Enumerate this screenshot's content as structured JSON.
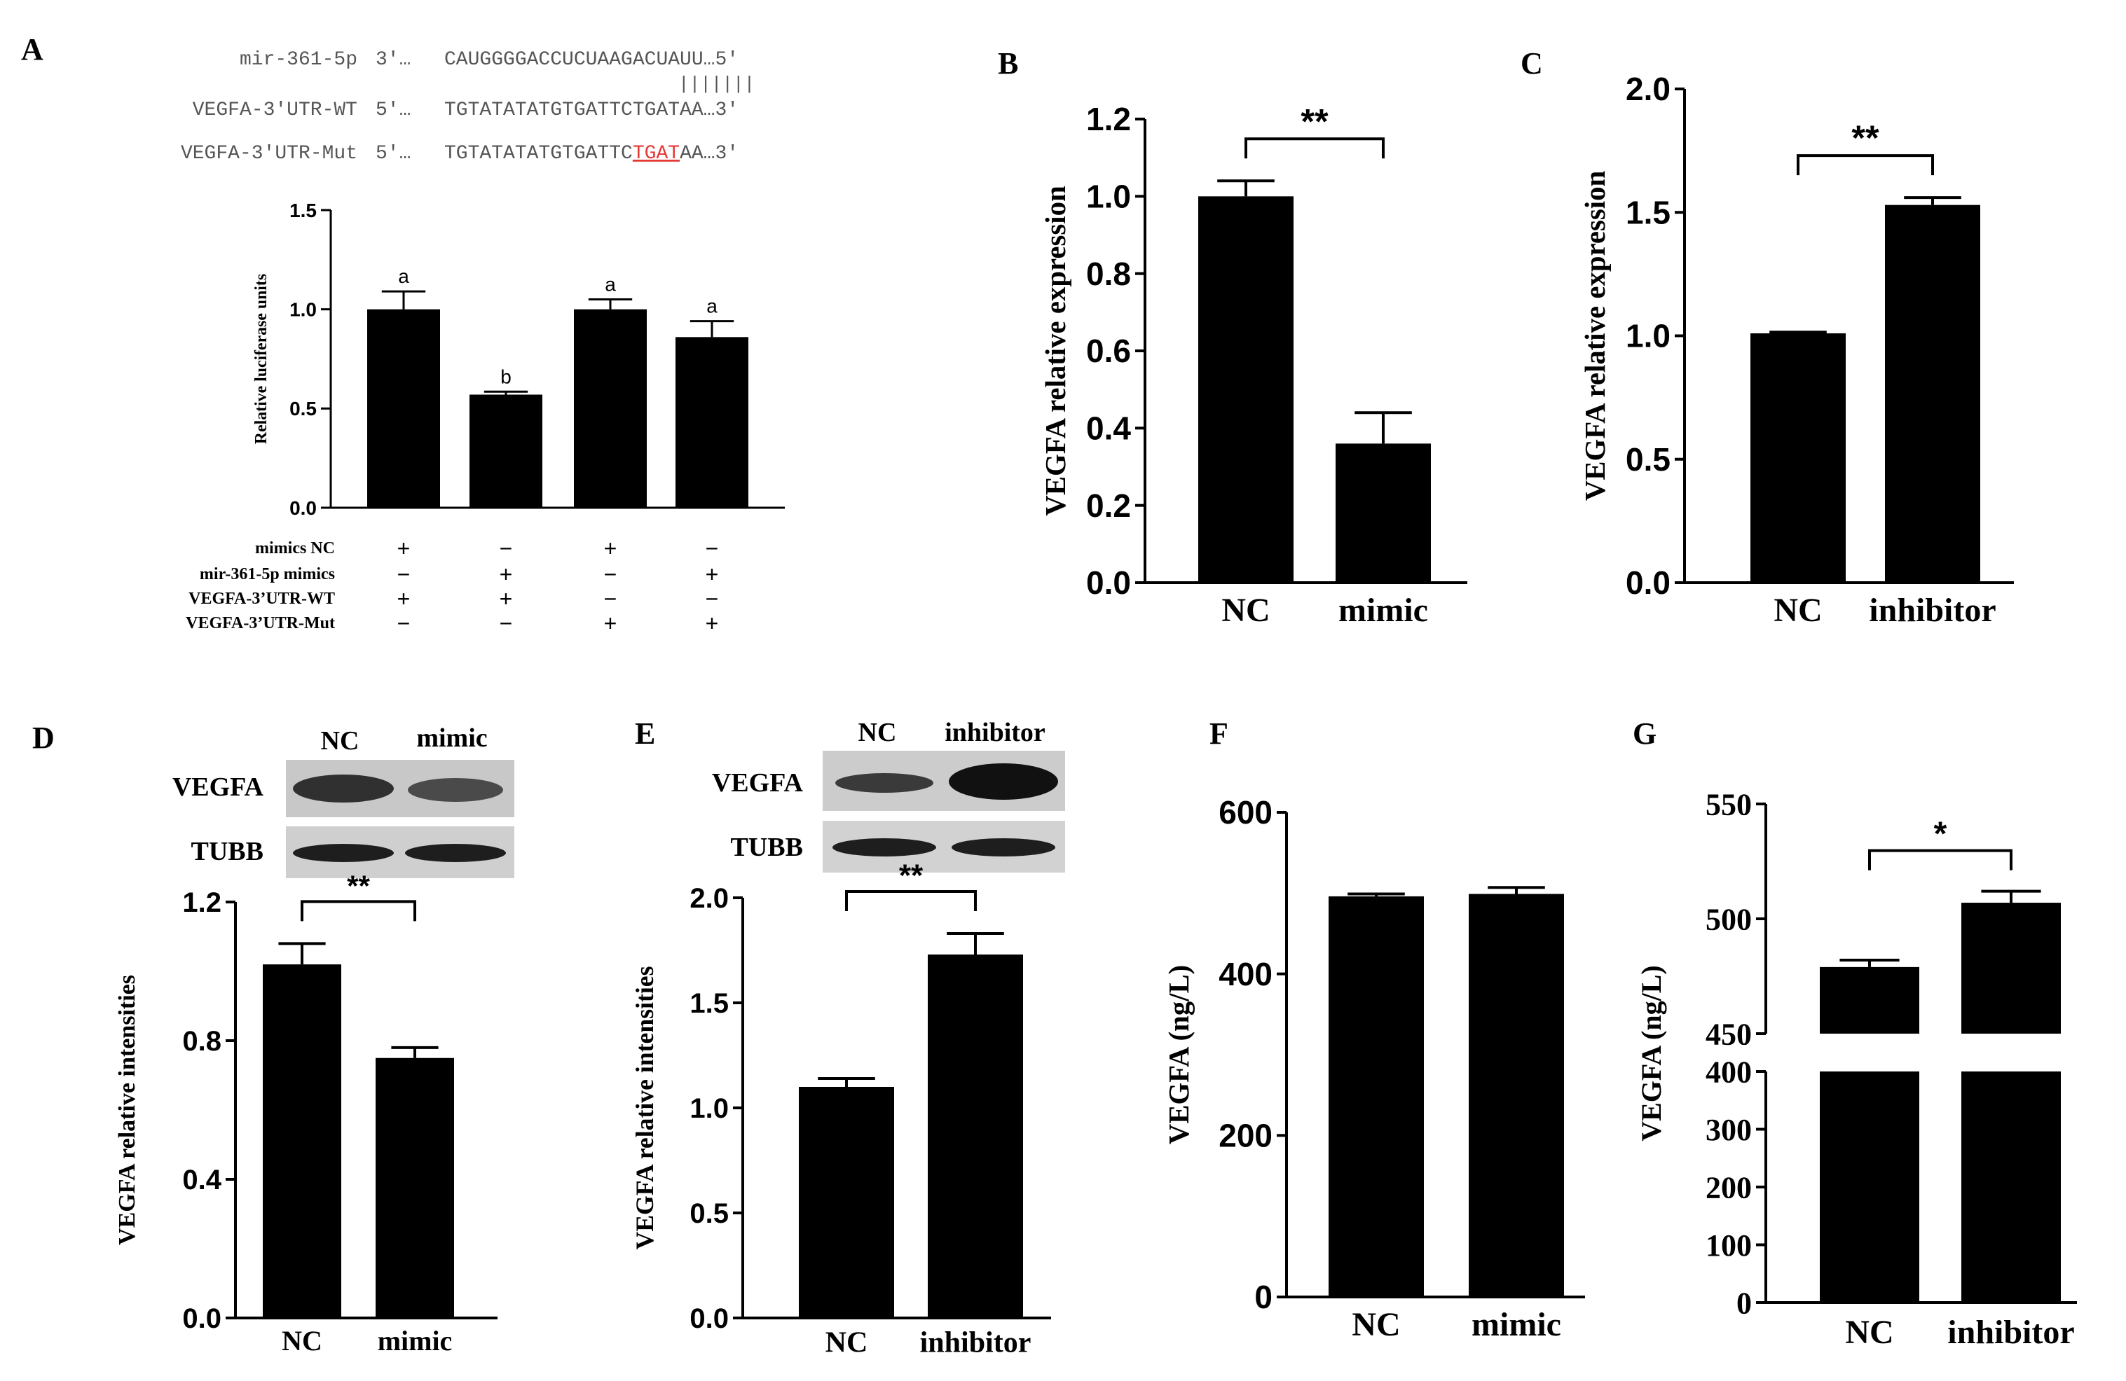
{
  "panel_labels": [
    "A",
    "B",
    "C",
    "D",
    "E",
    "F",
    "G"
  ],
  "sequences": {
    "mirna": {
      "name": "mir-361-5p",
      "end5": "3′…",
      "seq": "CAUGGGGACCUCUAAGACUAUU…5′"
    },
    "pairing": "|||||||",
    "wt": {
      "name": "VEGFA-3′UTR-WT",
      "end5": "5′…",
      "seq": "TGTATATATGTGATTCTGATAA…3′"
    },
    "mut": {
      "name": "VEGFA-3′UTR-Mut",
      "end5": "5′…",
      "seq_pre": "TGTATATATGTGATTC",
      "seq_mut": "TGAT",
      "seq_post": "AA…3′"
    },
    "mut_color": "#e53935"
  },
  "condition_table": {
    "rows": [
      {
        "label": "mimics NC",
        "signs": [
          "+",
          "−",
          "+",
          "−"
        ]
      },
      {
        "label": "mir-361-5p mimics",
        "signs": [
          "−",
          "+",
          "−",
          "+"
        ]
      },
      {
        "label": "VEGFA-3’UTR-WT",
        "signs": [
          "+",
          "+",
          "−",
          "−"
        ]
      },
      {
        "label": "VEGFA-3’UTR-Mut",
        "signs": [
          "−",
          "−",
          "+",
          "+"
        ]
      }
    ]
  },
  "blots": {
    "D": {
      "lanes": [
        "NC",
        "mimic"
      ],
      "bands": [
        "VEGFA",
        "TUBB"
      ]
    },
    "E": {
      "lanes": [
        "NC",
        "inhibitor"
      ],
      "bands": [
        "VEGFA",
        "TUBB"
      ]
    }
  },
  "chart_data": [
    {
      "panel": "A",
      "type": "bar",
      "ylabel": "Relative luciferase units",
      "ylim": [
        0,
        1.5
      ],
      "yticks": [
        "0.0",
        "0.5",
        "1.0",
        "1.5"
      ],
      "categories": [
        "",
        "",
        "",
        ""
      ],
      "values": [
        1.0,
        0.57,
        1.0,
        0.86
      ],
      "errors": [
        0.09,
        0.015,
        0.05,
        0.08
      ],
      "bar_labels": [
        "a",
        "b",
        "a",
        "a"
      ],
      "significance": ""
    },
    {
      "panel": "B",
      "type": "bar",
      "ylabel": "VEGFA relative  expression",
      "ylim": [
        0,
        1.2
      ],
      "yticks": [
        "0.0",
        "0.2",
        "0.4",
        "0.6",
        "0.8",
        "1.0",
        "1.2"
      ],
      "categories": [
        "NC",
        "mimic"
      ],
      "values": [
        1.0,
        0.36
      ],
      "errors": [
        0.04,
        0.08
      ],
      "significance": "**"
    },
    {
      "panel": "C",
      "type": "bar",
      "ylabel": "VEGFA relative expression",
      "ylim": [
        0,
        2.0
      ],
      "yticks": [
        "0.0",
        "0.5",
        "1.0",
        "1.5",
        "2.0"
      ],
      "categories": [
        "NC",
        "inhibitor"
      ],
      "values": [
        1.01,
        1.53
      ],
      "errors": [
        0.005,
        0.03
      ],
      "significance": "**"
    },
    {
      "panel": "D",
      "type": "bar",
      "ylabel": "VEGFA relative intensities",
      "ylim": [
        0,
        1.2
      ],
      "yticks": [
        "0.0",
        "0.4",
        "0.8",
        "1.2"
      ],
      "categories": [
        "NC",
        "mimic"
      ],
      "values": [
        1.02,
        0.75
      ],
      "errors": [
        0.06,
        0.03
      ],
      "significance": "**"
    },
    {
      "panel": "E",
      "type": "bar",
      "ylabel": "VEGFA relative intensities",
      "ylim": [
        0,
        2.0
      ],
      "yticks": [
        "0.0",
        "0.5",
        "1.0",
        "1.5",
        "2.0"
      ],
      "categories": [
        "NC",
        "inhibitor"
      ],
      "values": [
        1.1,
        1.73
      ],
      "errors": [
        0.04,
        0.1
      ],
      "significance": "**"
    },
    {
      "panel": "F",
      "type": "bar",
      "ylabel": "VEGFA (ng/L)",
      "ylim": [
        0,
        600
      ],
      "yticks": [
        "0",
        "200",
        "400",
        "600"
      ],
      "categories": [
        "NC",
        "mimic"
      ],
      "values": [
        496,
        499
      ],
      "errors": [
        3,
        8
      ],
      "significance": ""
    },
    {
      "panel": "G",
      "type": "bar",
      "ylabel": "VEGFA (ng/L)",
      "axis_break": true,
      "lower_ylim": [
        0,
        400
      ],
      "lower_yticks": [
        "0",
        "100",
        "200",
        "300",
        "400"
      ],
      "upper_ylim": [
        450,
        550
      ],
      "upper_yticks": [
        "450",
        "500",
        "550"
      ],
      "categories": [
        "NC",
        "inhibitor"
      ],
      "values": [
        479,
        507
      ],
      "errors": [
        3,
        5
      ],
      "significance": "*"
    }
  ]
}
